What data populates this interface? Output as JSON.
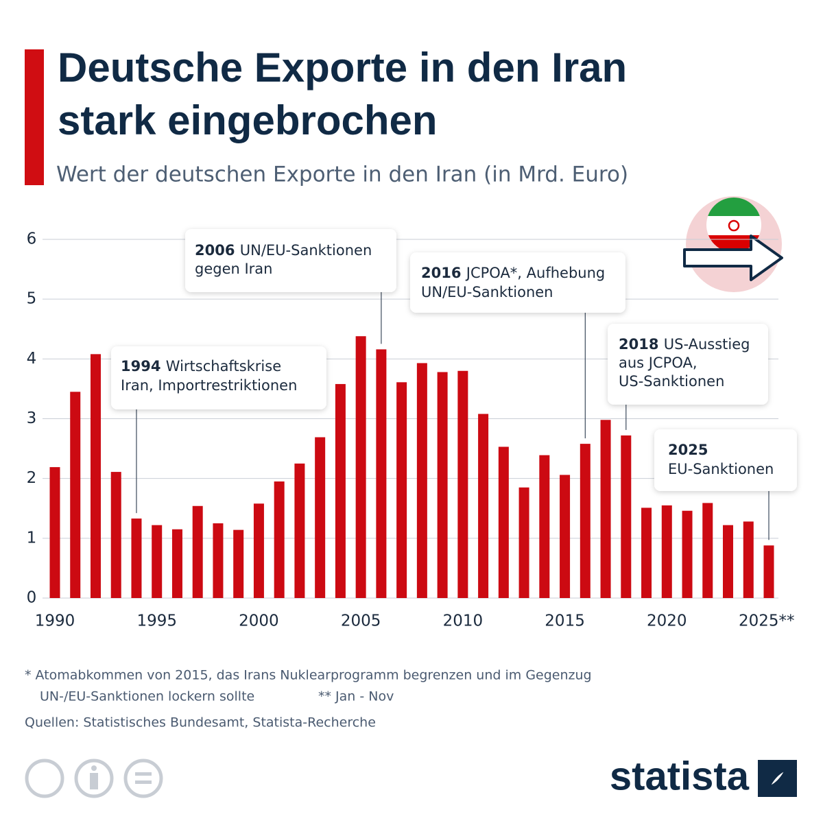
{
  "chart_data": {
    "type": "bar",
    "title": [
      "Deutsche Exporte in den Iran",
      "stark eingebrochen"
    ],
    "subtitle": "Wert der deutschen Exporte in den Iran (in Mrd. Euro)",
    "categories": [
      "1990",
      null,
      null,
      null,
      null,
      "1995",
      null,
      null,
      null,
      null,
      "2000",
      null,
      null,
      null,
      null,
      "2005",
      null,
      null,
      null,
      null,
      "2010",
      null,
      null,
      null,
      null,
      "2015",
      null,
      null,
      null,
      null,
      "2020",
      null,
      null,
      null,
      null,
      "2025**"
    ],
    "values": [
      2.19,
      3.45,
      4.08,
      2.11,
      1.33,
      1.22,
      1.15,
      1.54,
      1.25,
      1.14,
      1.58,
      1.95,
      2.25,
      2.69,
      3.58,
      4.38,
      4.16,
      3.61,
      3.93,
      3.78,
      3.8,
      3.08,
      2.53,
      1.85,
      2.39,
      2.06,
      2.58,
      2.98,
      2.72,
      1.51,
      1.55,
      1.46,
      1.59,
      1.22,
      1.28,
      0.88
    ],
    "color": "#cc0a12",
    "ylim": [
      0,
      6
    ],
    "yticks": [
      0,
      1,
      2,
      3,
      4,
      5,
      6
    ],
    "grid": true,
    "annotations": [
      {
        "year": "1994",
        "lines": [
          "Wirtschaftskrise",
          "Iran, Importrestriktionen"
        ]
      },
      {
        "year": "2006",
        "lines": [
          "UN/EU-Sanktionen",
          "gegen Iran"
        ]
      },
      {
        "year": "2016",
        "lines": [
          "JCPOA*, Aufhebung",
          "UN/EU-Sanktionen"
        ]
      },
      {
        "year": "2018",
        "lines": [
          "US-Ausstieg",
          "aus JCPOA,",
          "US-Sanktionen"
        ]
      },
      {
        "year": "2025",
        "lines": [
          "",
          "EU-Sanktionen"
        ]
      }
    ],
    "footnotes": [
      "* Atomabkommen von 2015, das Irans Nuklearprogramm begrenzen und im Gegenzug",
      "UN-/EU-Sanktionen lockern sollte",
      "** Jan - Nov"
    ],
    "source": "Quellen: Statistisches Bundesamt, Statista-Recherche",
    "brand": "statista"
  }
}
